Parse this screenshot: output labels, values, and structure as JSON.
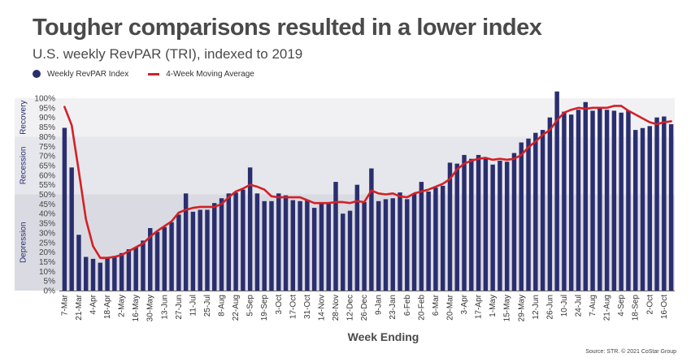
{
  "title": "Tougher comparisons resulted in a lower index",
  "subtitle": "U.S. weekly RevPAR (TRI), indexed to 2019",
  "source": "Source: STR. © 2021 CoStar Group",
  "legend": {
    "bars_label": "Weekly RevPAR Index",
    "line_label": "4-Week Moving Average"
  },
  "colors": {
    "bars": "#2b2e6e",
    "line": "#d42027",
    "band_recovery": "#f1f1f4",
    "band_recession": "#e6e7ec",
    "band_depression": "#dadbe2",
    "band_label": "#2b2e6e"
  },
  "chart_data": {
    "type": "bar",
    "xlabel": "Week Ending",
    "ylabel": "",
    "ylim": [
      0,
      100
    ],
    "yticks": [
      0,
      5,
      10,
      15,
      20,
      25,
      30,
      35,
      40,
      45,
      50,
      55,
      60,
      65,
      70,
      75,
      80,
      85,
      90,
      95,
      100
    ],
    "ytick_format": "percent",
    "grid": false,
    "legend_position": "top-left",
    "bands": [
      {
        "label": "Depression",
        "from": 0,
        "to": 50
      },
      {
        "label": "Recession",
        "from": 50,
        "to": 80
      },
      {
        "label": "Recovery",
        "from": 80,
        "to": 100
      }
    ],
    "x_tick_labels": [
      "7-Mar",
      "21-Mar",
      "4-Apr",
      "18-Apr",
      "2-May",
      "16-May",
      "30-May",
      "13-Jun",
      "27-Jun",
      "11-Jul",
      "25-Jul",
      "8-Aug",
      "22-Aug",
      "5-Sep",
      "19-Sep",
      "3-Oct",
      "17-Oct",
      "31-Oct",
      "14-Nov",
      "28-Nov",
      "12-Dec",
      "26-Dec",
      "9-Jan",
      "23-Jan",
      "6-Feb",
      "20-Feb",
      "6-Mar",
      "20-Mar",
      "3-Apr",
      "17-Apr",
      "1-May",
      "15-May",
      "29-May",
      "12-Jun",
      "26-Jun",
      "10-Jul",
      "24-Jul",
      "7-Aug",
      "21-Aug",
      "4-Sep",
      "18-Sep",
      "2-Oct",
      "16-Oct"
    ],
    "series": [
      {
        "name": "Weekly RevPAR Index",
        "type": "bar",
        "values": [
          84.6,
          64,
          29,
          17.5,
          16.5,
          14.5,
          17.5,
          18,
          19.5,
          21.5,
          22.5,
          26,
          32.5,
          30.5,
          33,
          35.5,
          39.5,
          50.5,
          41,
          42,
          42,
          45.5,
          48,
          50.5,
          51,
          52.5,
          64,
          50.5,
          46.5,
          46.5,
          50.5,
          49.5,
          47,
          46.5,
          47,
          43,
          45.5,
          46,
          56.5,
          40,
          41.5,
          55,
          46,
          63.5,
          46.5,
          47.5,
          48,
          51,
          47.5,
          50.5,
          56.5,
          51.5,
          53.5,
          54.5,
          66.5,
          66,
          70.5,
          68.5,
          70.5,
          69,
          65.5,
          67.5,
          67,
          71.5,
          77,
          79,
          82,
          83.5,
          90,
          103.5,
          93,
          91.5,
          94,
          98,
          93.5,
          95.5,
          94,
          93.5,
          92.5,
          93.5,
          83.5,
          84.5,
          85.5,
          90,
          90.5,
          86.5
        ]
      },
      {
        "name": "4-Week Moving Average",
        "type": "line",
        "values": [
          95.5,
          86,
          62,
          37,
          23,
          17,
          17,
          17.5,
          18.5,
          20.5,
          22.5,
          24.5,
          28,
          31,
          33.5,
          36,
          40.5,
          42,
          43,
          43.5,
          43.5,
          43.5,
          45,
          48.5,
          51.5,
          53,
          55,
          54,
          52.5,
          49,
          48.5,
          48.5,
          48.5,
          48.5,
          47,
          45.5,
          45.5,
          45.5,
          46,
          46,
          45.5,
          46.5,
          46,
          52,
          50.5,
          50,
          50.5,
          49,
          48.5,
          50.5,
          51.5,
          52.5,
          54,
          55.5,
          58,
          63,
          66,
          67.5,
          68.5,
          69,
          68,
          68.5,
          68,
          68.5,
          70.5,
          74.5,
          77.5,
          81,
          83.5,
          88.5,
          92.5,
          94,
          95,
          94.5,
          95,
          95,
          95,
          96,
          96,
          93.5,
          91.5,
          89.5,
          87.5,
          86.5,
          87.5,
          88
        ]
      }
    ]
  }
}
